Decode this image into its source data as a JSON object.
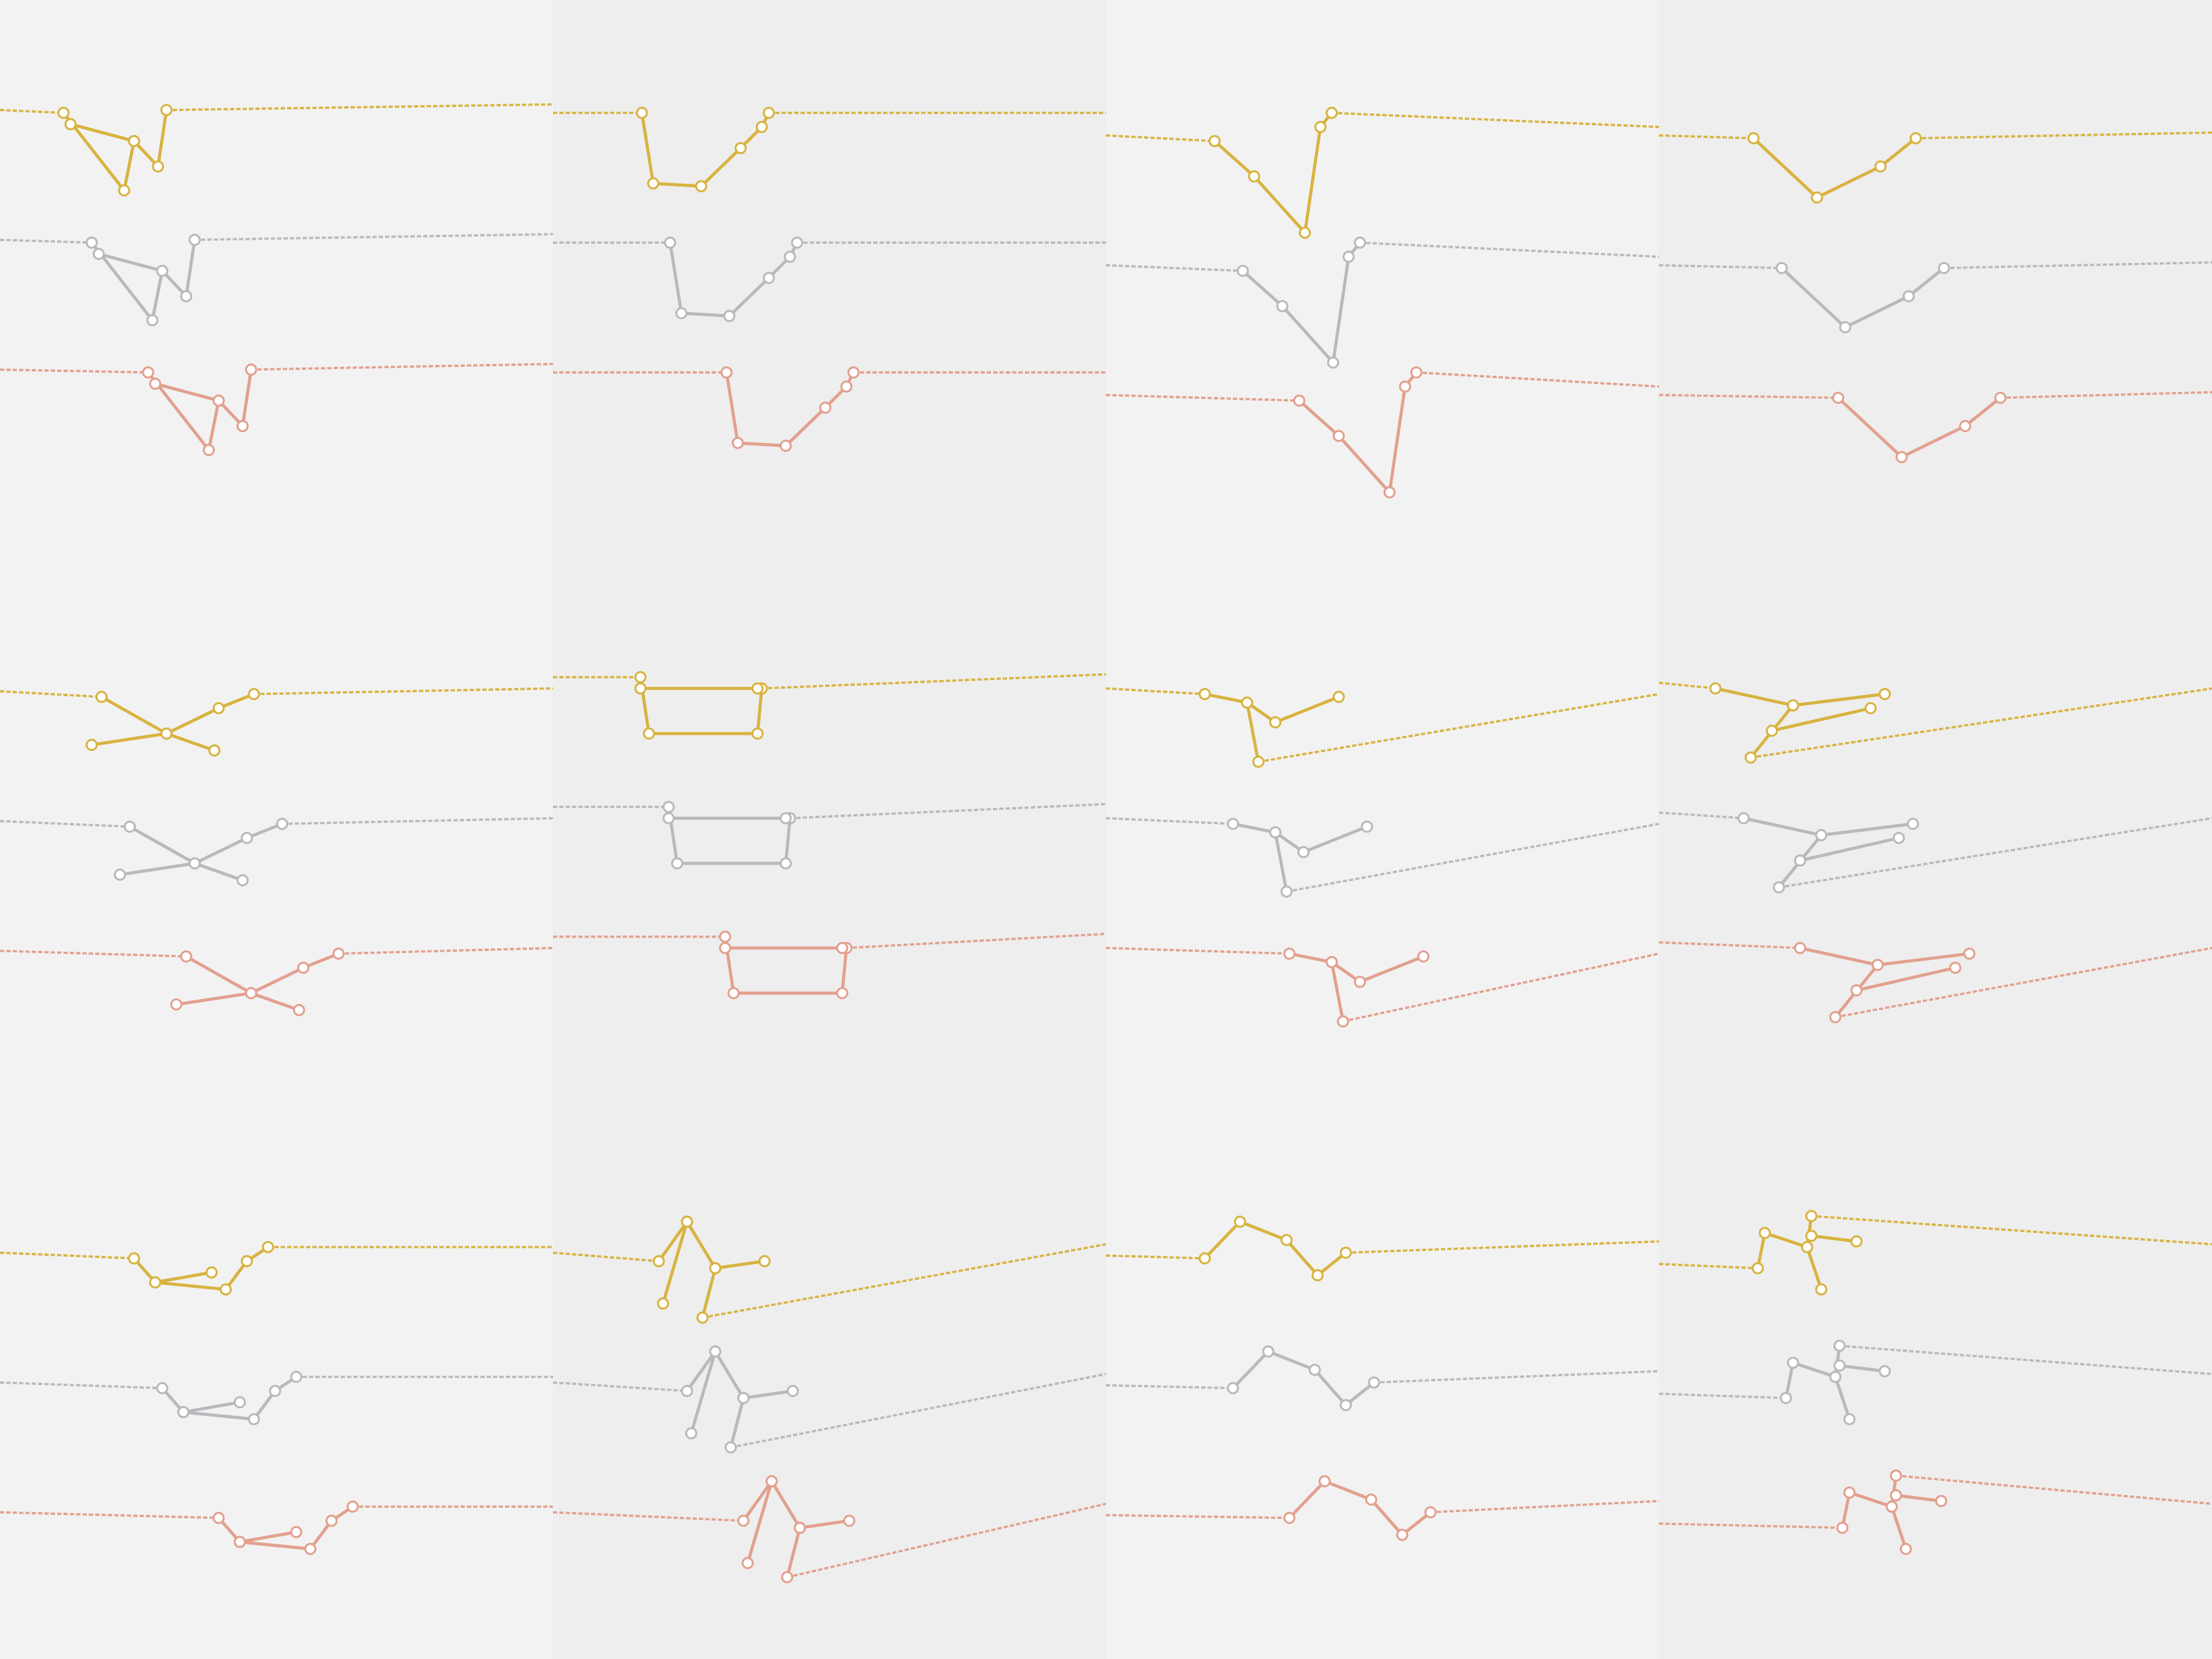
{
  "layout": {
    "rows": 3,
    "columns": 4,
    "necklaces_per_panel": 3
  },
  "colors": {
    "background": "#f2f2f2",
    "panel_alt": "#eeeeee",
    "gold": "#d8b33f",
    "silver": "#b9b9bd",
    "rose": "#e2a08e",
    "stone": "#ffffff"
  },
  "metal_order": [
    "gold",
    "silver",
    "rose"
  ]
}
